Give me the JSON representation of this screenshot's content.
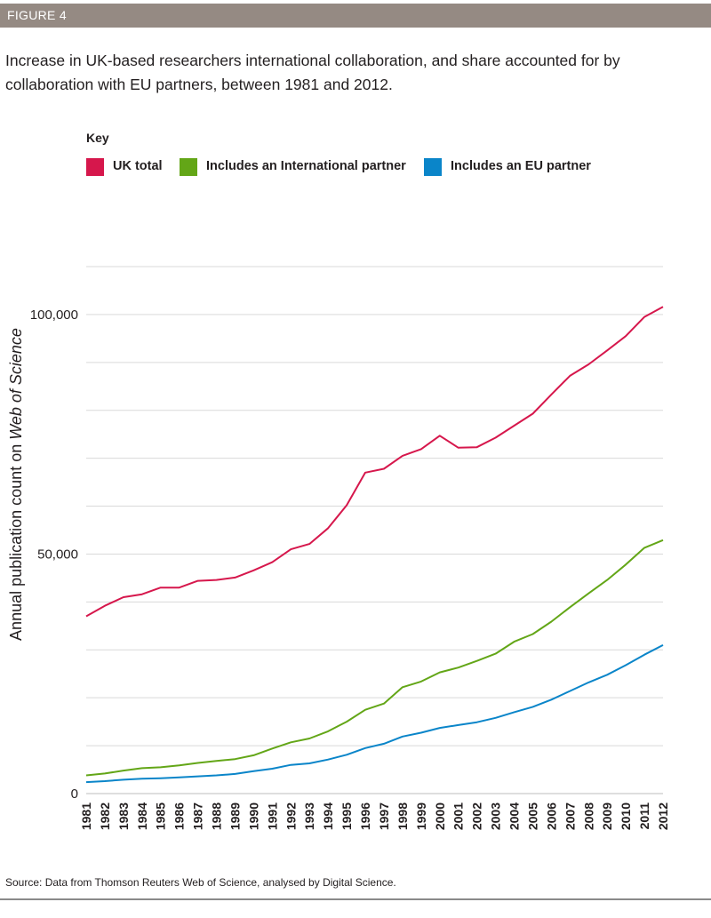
{
  "figure_label": "FIGURE 4",
  "subtitle": "Increase in UK-based researchers international collaboration, and share accounted for by collaboration with EU partners, between 1981 and 2012.",
  "key_title": "Key",
  "source": "Source: Data from Thomson Reuters Web of Science, analysed by Digital Science.",
  "colors": {
    "header_bg": "#958a83",
    "uk_total": "#d6174c",
    "international": "#63a617",
    "eu": "#0a85c9",
    "grid": "#d9d9d9"
  },
  "chart_data": {
    "type": "line",
    "title": "",
    "xlabel": "",
    "ylabel_prefix": "Annual publication count on ",
    "ylabel_emph": "Web of Science",
    "ylim": [
      0,
      110000
    ],
    "yticks": [
      0,
      50000,
      100000
    ],
    "ytick_labels": [
      "0",
      "50,000",
      "100,000"
    ],
    "grid_step": 10000,
    "legend_position": "top-left",
    "x": [
      "1981",
      "1982",
      "1983",
      "1984",
      "1985",
      "1986",
      "1987",
      "1988",
      "1989",
      "1990",
      "1991",
      "1992",
      "1993",
      "1994",
      "1995",
      "1996",
      "1997",
      "1998",
      "1999",
      "2000",
      "2001",
      "2002",
      "2003",
      "2004",
      "2005",
      "2006",
      "2007",
      "2008",
      "2009",
      "2010",
      "2011",
      "2012"
    ],
    "series": [
      {
        "name": "UK total",
        "color": "#d6174c",
        "values": [
          37000,
          39200,
          41000,
          41600,
          43000,
          43000,
          44400,
          44600,
          45100,
          46600,
          48300,
          51000,
          52100,
          55400,
          60200,
          67000,
          67800,
          70500,
          71900,
          74700,
          72200,
          72300,
          74300,
          76800,
          79300,
          83300,
          87200,
          89600,
          92500,
          95500,
          99500,
          101600
        ]
      },
      {
        "name": "Includes an International partner",
        "color": "#63a617",
        "values": [
          3800,
          4200,
          4800,
          5300,
          5500,
          5900,
          6400,
          6800,
          7200,
          8000,
          9400,
          10700,
          11500,
          13000,
          15000,
          17500,
          18800,
          22200,
          23400,
          25300,
          26300,
          27700,
          29200,
          31700,
          33300,
          35900,
          38900,
          41800,
          44600,
          47800,
          51300,
          52900
        ]
      },
      {
        "name": "Includes an EU partner",
        "color": "#0a85c9",
        "values": [
          2400,
          2600,
          2900,
          3100,
          3200,
          3400,
          3600,
          3800,
          4100,
          4700,
          5200,
          6000,
          6300,
          7100,
          8100,
          9500,
          10400,
          11900,
          12700,
          13700,
          14300,
          14900,
          15800,
          17000,
          18100,
          19600,
          21400,
          23200,
          24800,
          26800,
          29000,
          31000
        ]
      }
    ]
  }
}
